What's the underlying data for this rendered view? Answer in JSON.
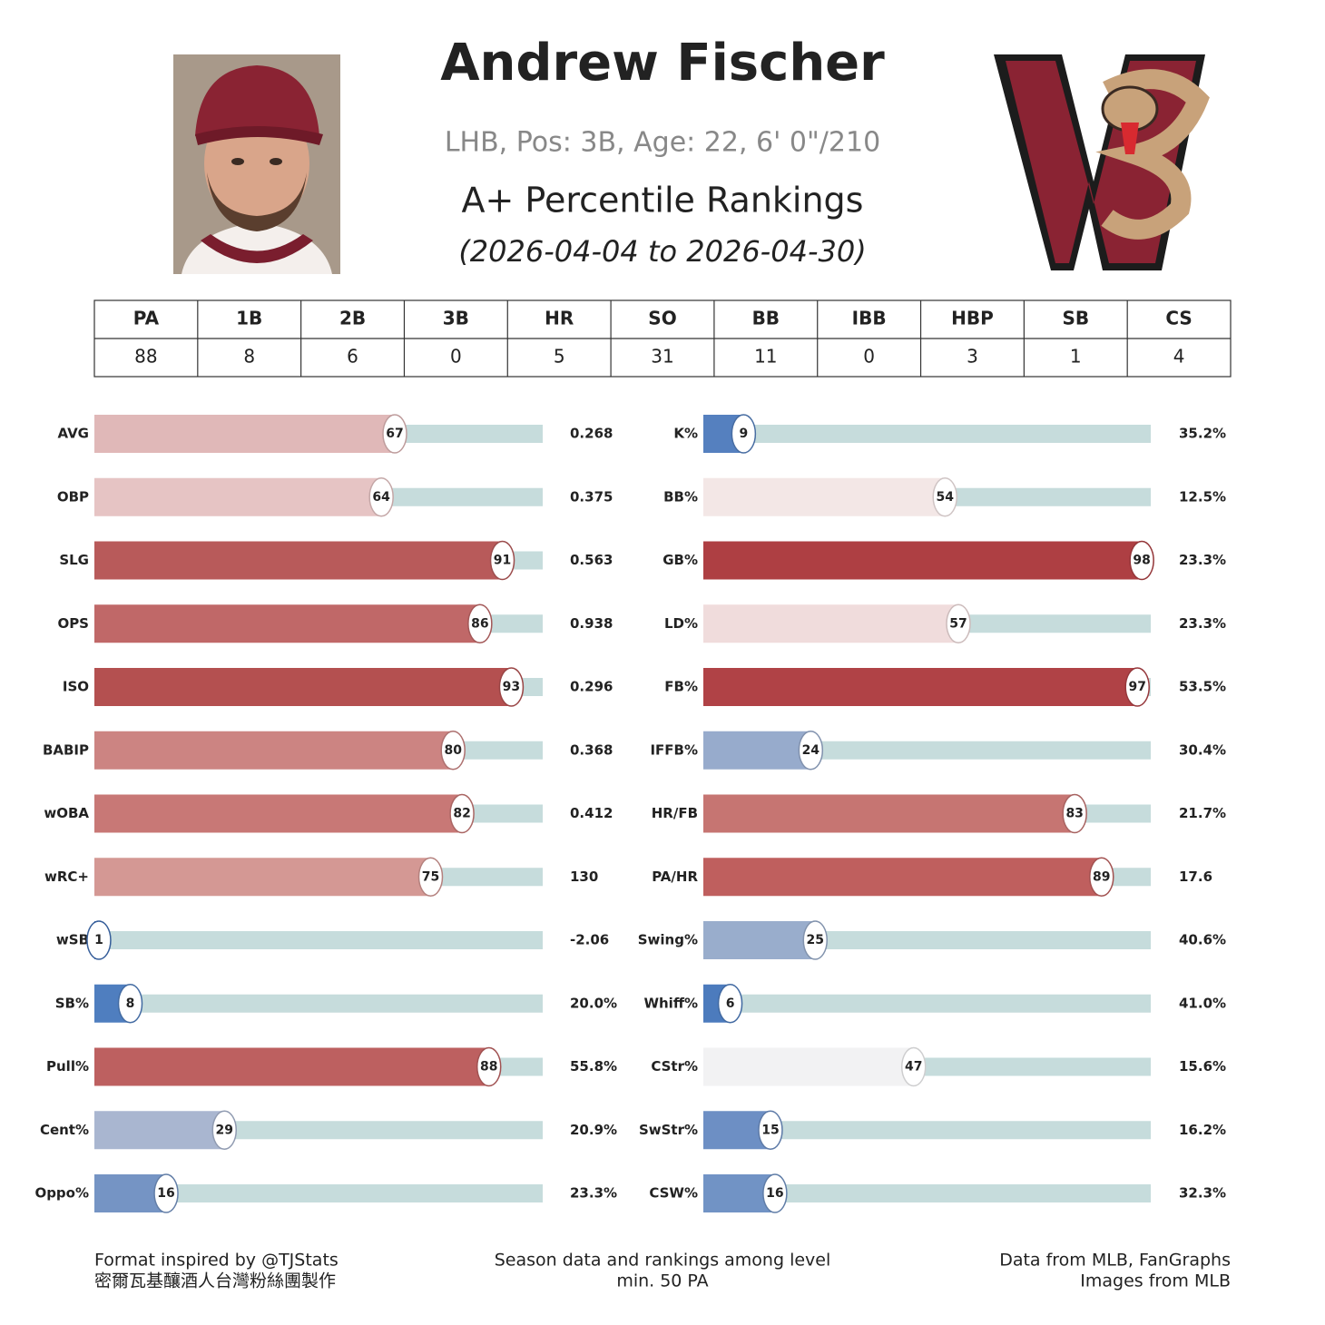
{
  "header": {
    "name": "Andrew Fischer",
    "bio": "LHB, Pos: 3B, Age: 22, 6' 0\"/210",
    "title": "A+ Percentile Rankings",
    "dates": "(2026-04-04 to 2026-04-30)"
  },
  "table": {
    "headers": [
      "PA",
      "1B",
      "2B",
      "3B",
      "HR",
      "SO",
      "BB",
      "IBB",
      "HBP",
      "SB",
      "CS"
    ],
    "values": [
      88,
      8,
      6,
      0,
      5,
      31,
      11,
      0,
      3,
      1,
      4
    ]
  },
  "chart_data": [
    {
      "type": "bar",
      "orientation": "horizontal",
      "xlim": [
        0,
        100
      ],
      "categories": [
        "AVG",
        "OBP",
        "SLG",
        "OPS",
        "ISO",
        "BABIP",
        "wOBA",
        "wRC+",
        "wSB",
        "SB%",
        "Pull%",
        "Cent%",
        "Oppo%"
      ],
      "values": [
        67,
        64,
        91,
        86,
        93,
        80,
        82,
        75,
        1,
        8,
        88,
        29,
        16
      ],
      "colors": [
        "#e0b8b8",
        "#e6c4c4",
        "#b85a5a",
        "#c06868",
        "#b45050",
        "#cc8482",
        "#c87876",
        "#d49894",
        "#3f6fb5",
        "#4f7ebf",
        "#bd6060",
        "#a9b6d0",
        "#7594c4"
      ],
      "stats": [
        "0.268",
        "0.375",
        "0.563",
        "0.938",
        "0.296",
        "0.368",
        "0.412",
        "130",
        "-2.06",
        "20.0%",
        "55.8%",
        "20.9%",
        "23.3%"
      ]
    },
    {
      "type": "bar",
      "orientation": "horizontal",
      "xlim": [
        0,
        100
      ],
      "categories": [
        "K%",
        "BB%",
        "GB%",
        "LD%",
        "FB%",
        "IFFB%",
        "HR/FB",
        "PA/HR",
        "Swing%",
        "Whiff%",
        "CStr%",
        "SwStr%",
        "CSW%"
      ],
      "values": [
        9,
        54,
        98,
        57,
        97,
        24,
        83,
        89,
        25,
        6,
        47,
        15,
        16
      ],
      "colors": [
        "#5580bf",
        "#f3e7e6",
        "#ae3f43",
        "#f0dcdc",
        "#b04246",
        "#97abcc",
        "#c67572",
        "#bf5f5e",
        "#99adcc",
        "#4c7bbd",
        "#f2f2f3",
        "#6d8fc4",
        "#7193c5"
      ],
      "stats": [
        "35.2%",
        "12.5%",
        "23.3%",
        "23.3%",
        "53.5%",
        "30.4%",
        "21.7%",
        "17.6",
        "40.6%",
        "41.0%",
        "15.6%",
        "16.2%",
        "32.3%"
      ]
    }
  ],
  "footer": {
    "left": [
      "Format inspired by @TJStats",
      "密爾瓦基釀酒人台灣粉絲團製作"
    ],
    "center": [
      "Season data and rankings among level",
      "min. 50 PA"
    ],
    "right": [
      "Data from MLB, FanGraphs",
      "Images from MLB"
    ]
  }
}
